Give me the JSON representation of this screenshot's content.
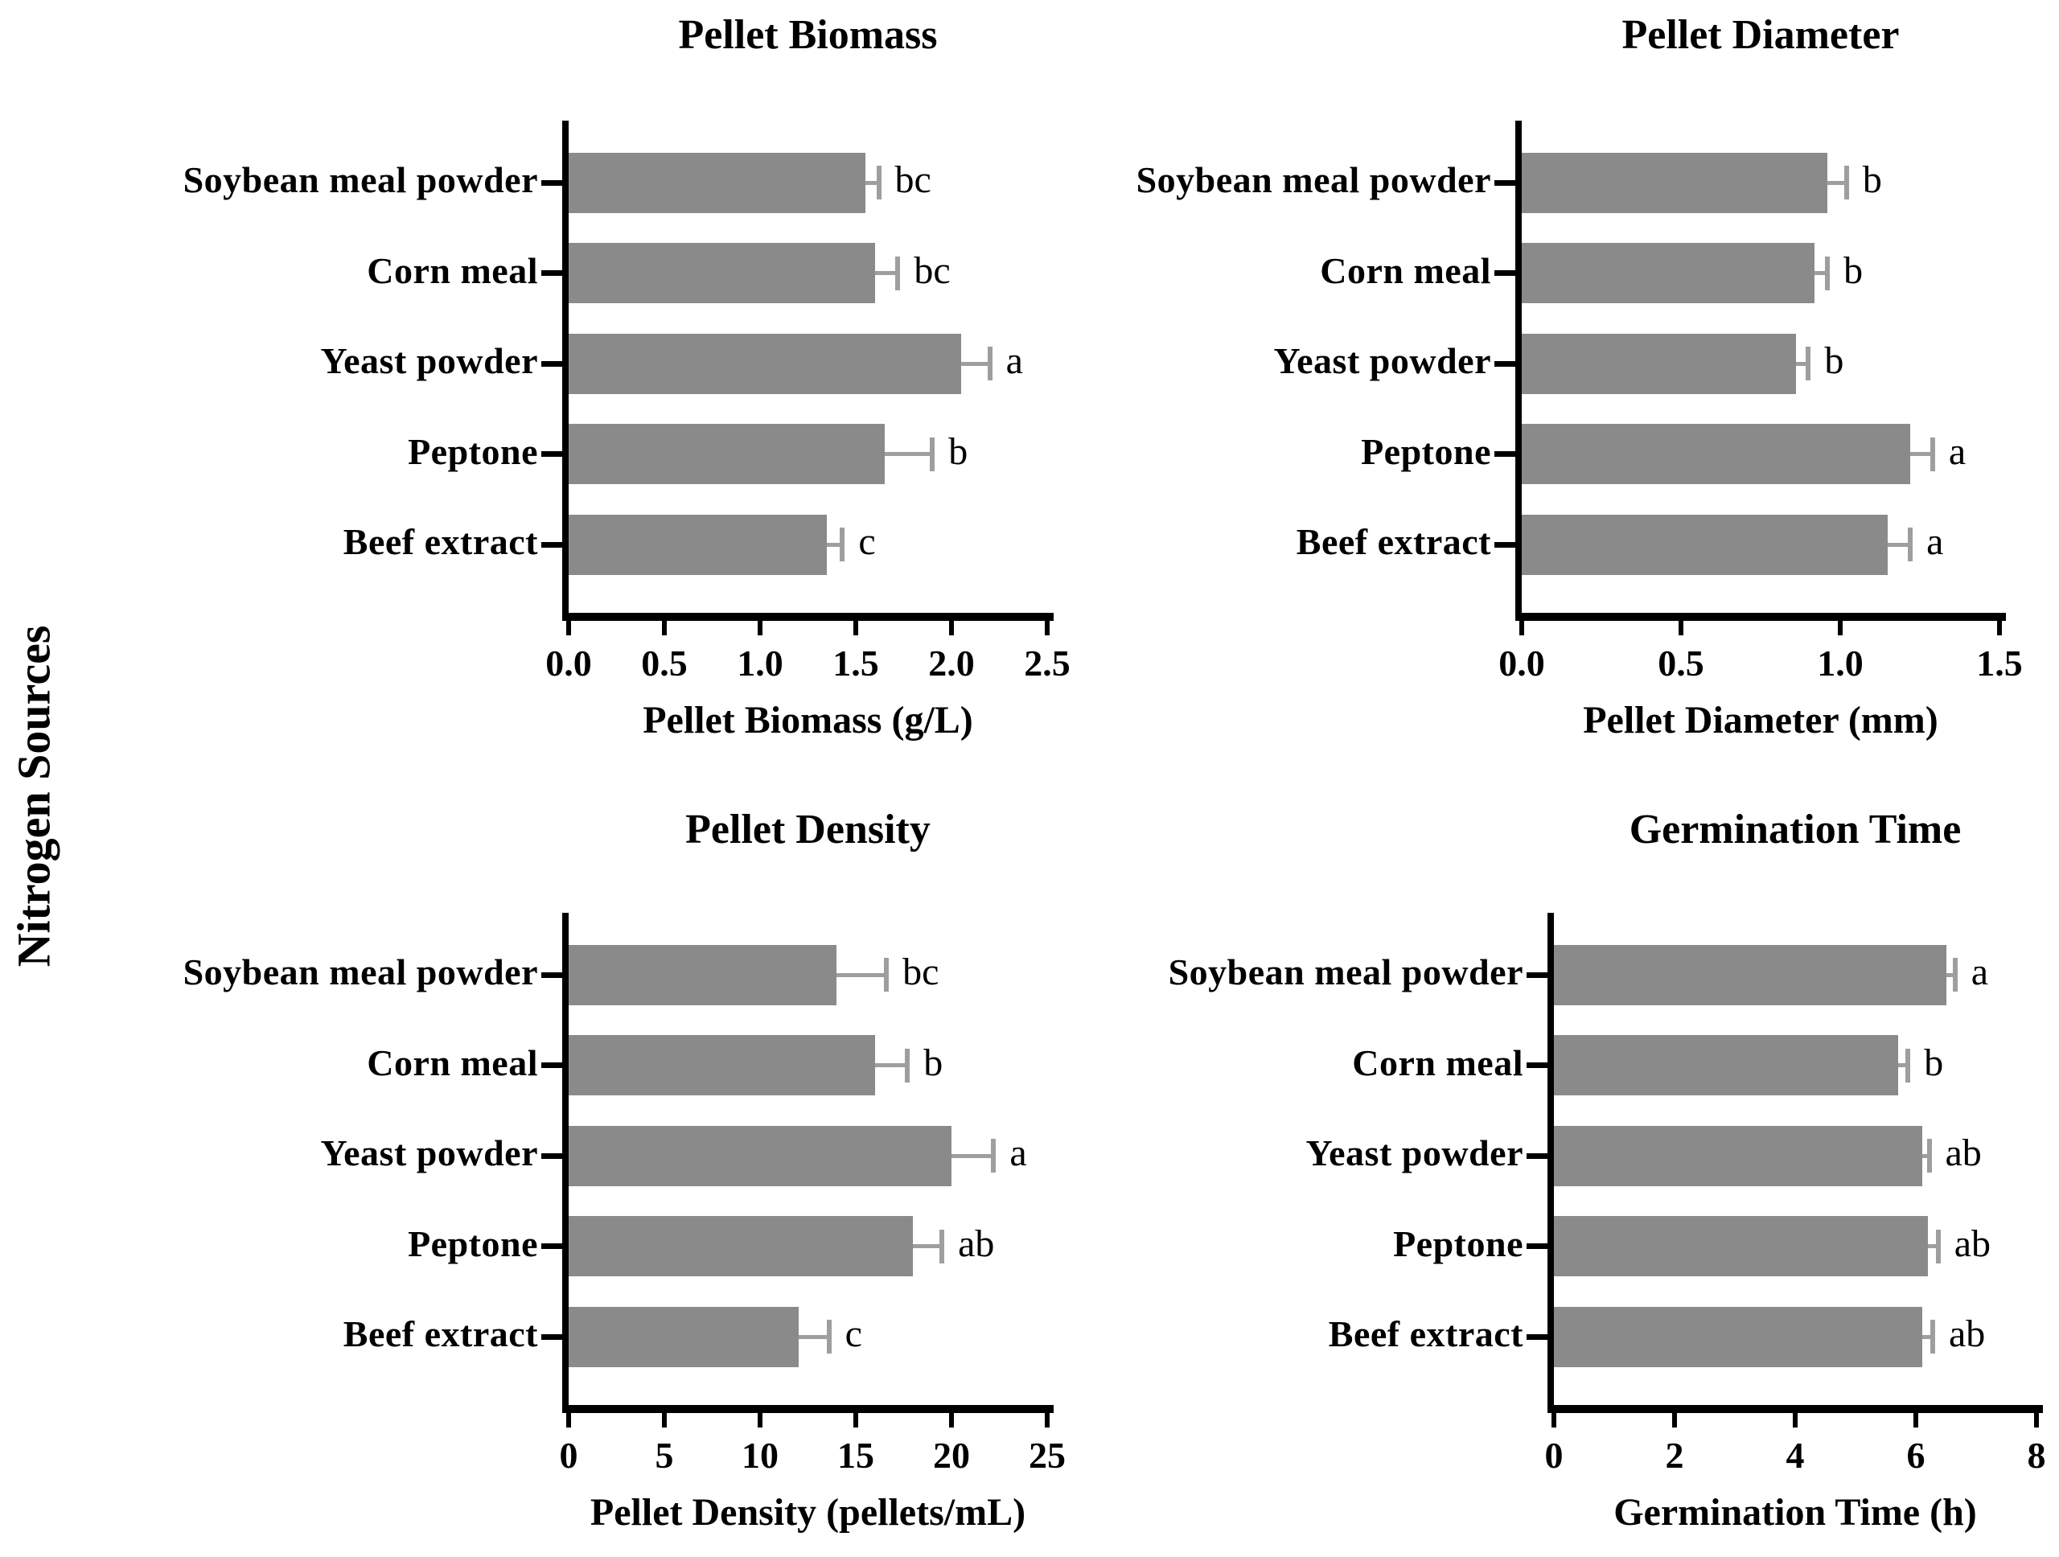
{
  "figure": {
    "shared_ylabel": "Nitrogen Sources",
    "colors": {
      "bar": "#8a8a8a",
      "error": "#9e9e9e",
      "axis": "#000000",
      "text": "#000000",
      "background": "#ffffff"
    }
  },
  "chart_data": [
    {
      "type": "bar",
      "orientation": "horizontal",
      "title": "Pellet Biomass",
      "xlabel": "Pellet Biomass (g/L)",
      "categories": [
        "Soybean meal powder",
        "Corn meal",
        "Yeast powder",
        "Peptone",
        "Beef extract"
      ],
      "values": [
        1.55,
        1.6,
        2.05,
        1.65,
        1.35
      ],
      "errors": [
        0.07,
        0.12,
        0.15,
        0.25,
        0.08
      ],
      "sig_letters": [
        "bc",
        "bc",
        "a",
        "b",
        "c"
      ],
      "xticks": [
        0,
        0.5,
        1.0,
        1.5,
        2.0,
        2.5
      ],
      "xtick_labels": [
        "0.0",
        "0.5",
        "1.0",
        "1.5",
        "2.0",
        "2.5"
      ],
      "xlim": [
        0,
        2.5
      ],
      "grid": false,
      "legend": "none"
    },
    {
      "type": "bar",
      "orientation": "horizontal",
      "title": "Pellet Diameter",
      "xlabel": "Pellet Diameter (mm)",
      "categories": [
        "Soybean meal powder",
        "Corn meal",
        "Yeast powder",
        "Peptone",
        "Beef extract"
      ],
      "values": [
        0.96,
        0.92,
        0.86,
        1.22,
        1.15
      ],
      "errors": [
        0.06,
        0.04,
        0.04,
        0.07,
        0.07
      ],
      "sig_letters": [
        "b",
        "b",
        "b",
        "a",
        "a"
      ],
      "xticks": [
        0,
        0.5,
        1.0,
        1.5
      ],
      "xtick_labels": [
        "0.0",
        "0.5",
        "1.0",
        "1.5"
      ],
      "xlim": [
        0,
        1.5
      ],
      "grid": false,
      "legend": "none"
    },
    {
      "type": "bar",
      "orientation": "horizontal",
      "title": "Pellet Density",
      "xlabel": "Pellet Density (pellets/mL)",
      "categories": [
        "Soybean meal powder",
        "Corn meal",
        "Yeast powder",
        "Peptone",
        "Beef extract"
      ],
      "values": [
        14,
        16,
        20,
        18,
        12
      ],
      "errors": [
        2.6,
        1.7,
        2.2,
        1.5,
        1.6
      ],
      "sig_letters": [
        "bc",
        "b",
        "a",
        "ab",
        "c"
      ],
      "xticks": [
        0,
        5,
        10,
        15,
        20,
        25
      ],
      "xtick_labels": [
        "0",
        "5",
        "10",
        "15",
        "20",
        "25"
      ],
      "xlim": [
        0,
        25
      ],
      "grid": false,
      "legend": "none"
    },
    {
      "type": "bar",
      "orientation": "horizontal",
      "title": "Germination Time",
      "xlabel": "Germination Time (h)",
      "categories": [
        "Soybean meal powder",
        "Corn meal",
        "Yeast powder",
        "Peptone",
        "Beef extract"
      ],
      "values": [
        6.5,
        5.7,
        6.1,
        6.2,
        6.1
      ],
      "errors": [
        0.15,
        0.17,
        0.12,
        0.17,
        0.18
      ],
      "sig_letters": [
        "a",
        "b",
        "ab",
        "ab",
        "ab"
      ],
      "xticks": [
        0,
        2,
        4,
        6,
        8
      ],
      "xtick_labels": [
        "0",
        "2",
        "4",
        "6",
        "8"
      ],
      "xlim": [
        0,
        8
      ],
      "grid": false,
      "legend": "none"
    }
  ]
}
